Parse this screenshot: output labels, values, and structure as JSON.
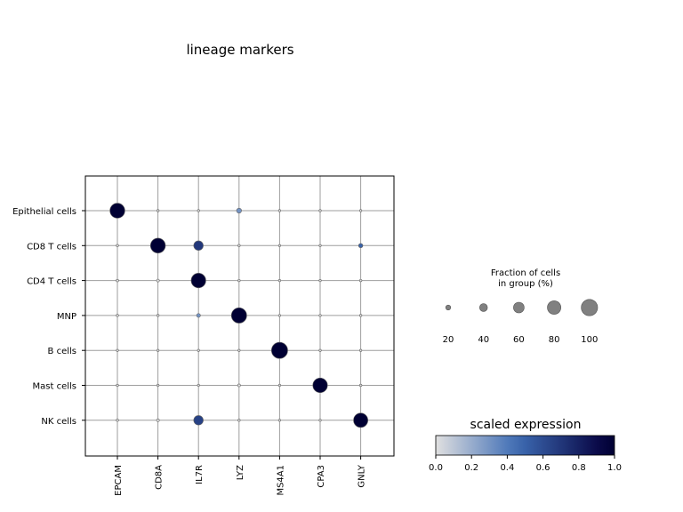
{
  "chart_data": {
    "type": "dotplot",
    "title": "lineage markers",
    "genes": [
      "EPCAM",
      "CD8A",
      "IL7R",
      "LYZ",
      "MS4A1",
      "CPA3",
      "GNLY"
    ],
    "groups": [
      "Epithelial cells",
      "CD8 T cells",
      "CD4 T cells",
      "MNP",
      "B cells",
      "Mast cells",
      "NK cells"
    ],
    "fraction_pct": [
      [
        90,
        2,
        1,
        20,
        1,
        1,
        1
      ],
      [
        2,
        90,
        52,
        2,
        1,
        1,
        15
      ],
      [
        3,
        5,
        88,
        2,
        1,
        1,
        2
      ],
      [
        2,
        2,
        12,
        93,
        1,
        1,
        2
      ],
      [
        1,
        1,
        1,
        1,
        99,
        1,
        1
      ],
      [
        2,
        1,
        1,
        5,
        1,
        88,
        2
      ],
      [
        2,
        5,
        52,
        2,
        1,
        1,
        86
      ]
    ],
    "scaled_expression": [
      [
        1.0,
        0.0,
        0.0,
        0.3,
        0.0,
        0.0,
        0.0
      ],
      [
        0.0,
        1.0,
        0.7,
        0.0,
        0.0,
        0.0,
        0.5
      ],
      [
        0.0,
        0.0,
        1.0,
        0.0,
        0.0,
        0.0,
        0.0
      ],
      [
        0.0,
        0.0,
        0.3,
        1.0,
        0.0,
        0.0,
        0.0
      ],
      [
        0.0,
        0.0,
        0.0,
        0.0,
        1.0,
        0.0,
        0.0
      ],
      [
        0.0,
        0.0,
        0.0,
        0.0,
        0.0,
        1.0,
        0.0
      ],
      [
        0.0,
        0.0,
        0.65,
        0.0,
        0.0,
        0.0,
        1.0
      ]
    ],
    "size_legend": {
      "title_lines": [
        "Fraction of cells",
        "in group (%)"
      ],
      "values": [
        20,
        40,
        60,
        80,
        100
      ]
    },
    "color_legend": {
      "title": "scaled expression",
      "range": [
        0.0,
        1.0
      ],
      "ticks": [
        "0.0",
        "0.2",
        "0.4",
        "0.6",
        "0.8",
        "1.0"
      ],
      "colors": [
        "#e0e0e0",
        "#3e6db5",
        "#0b0b4a",
        "#000033"
      ]
    },
    "grid": true
  }
}
